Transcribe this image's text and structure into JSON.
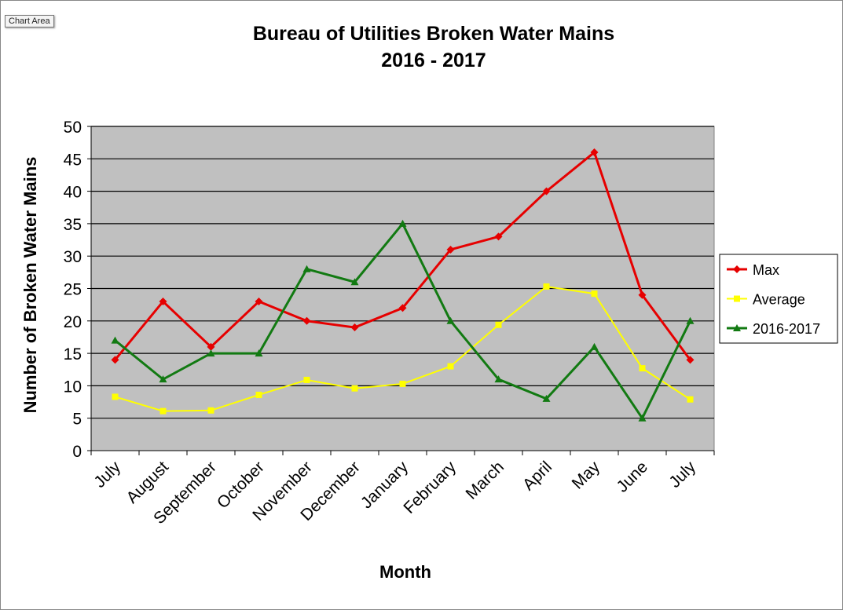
{
  "tooltip": "Chart Area",
  "chart_data": {
    "type": "line",
    "title": "Bureau of Utilities Broken Water Mains",
    "subtitle": "2016 - 2017",
    "xlabel": "Month",
    "ylabel": "Number of Broken Water Mains",
    "ylim": [
      0,
      50
    ],
    "yticks": [
      0,
      5,
      10,
      15,
      20,
      25,
      30,
      35,
      40,
      45,
      50
    ],
    "grid": true,
    "legend": "right",
    "plot_background": "#C0C0C0",
    "categories": [
      "July",
      "August",
      "September",
      "October",
      "November",
      "December",
      "January",
      "February",
      "March",
      "April",
      "May",
      "June",
      "July"
    ],
    "series": [
      {
        "name": "Max",
        "color": "#E60000",
        "marker": "diamond",
        "values": [
          14,
          23,
          16,
          23,
          20,
          19,
          22,
          31,
          33,
          40,
          46,
          24,
          14
        ]
      },
      {
        "name": "Average",
        "color": "#FFFF00",
        "marker": "square",
        "values": [
          8.3,
          6.1,
          6.2,
          8.6,
          10.9,
          9.6,
          10.3,
          13.0,
          19.4,
          25.3,
          24.2,
          12.7,
          7.9
        ]
      },
      {
        "name": "2016-2017",
        "color": "#127A12",
        "marker": "triangle",
        "values": [
          17,
          11,
          15,
          15,
          28,
          26,
          35,
          20,
          11,
          8,
          16,
          5,
          20
        ]
      }
    ]
  }
}
